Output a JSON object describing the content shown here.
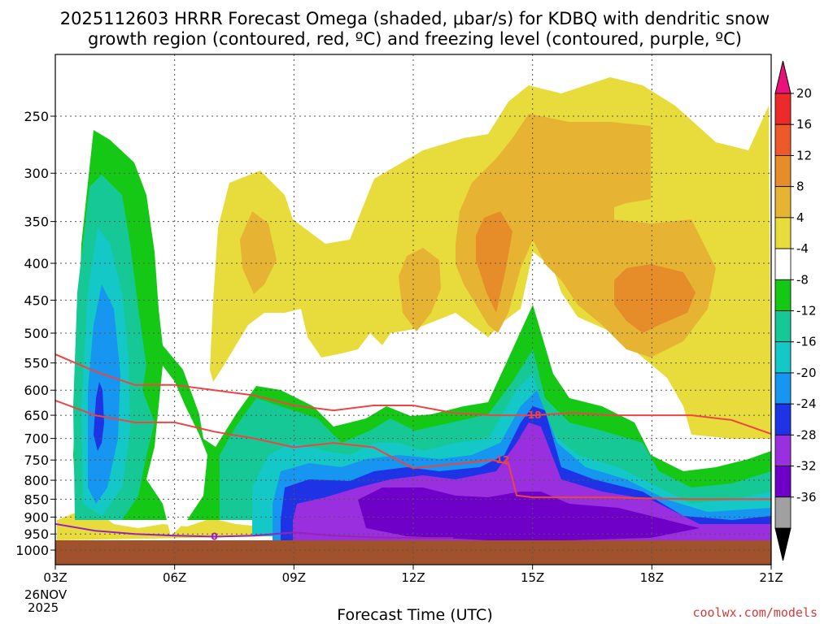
{
  "title": {
    "line1": "2025112603 HRRR Forecast Omega (shaded, μbar/s) for KDBQ with dendritic snow",
    "line2": "growth region (contoured, red, ºC) and freezing level (contoured, purple, ºC)"
  },
  "x_axis": {
    "label": "Forecast Time (UTC)",
    "date_line1": "26NOV",
    "date_line2": "2025"
  },
  "credit": "coolwx.com/models",
  "chart_data": {
    "type": "contour",
    "x": [
      "03Z",
      "06Z",
      "09Z",
      "12Z",
      "15Z",
      "18Z",
      "21Z"
    ],
    "y_ticks": [
      250,
      300,
      350,
      400,
      450,
      500,
      550,
      600,
      650,
      700,
      750,
      800,
      850,
      900,
      950,
      1000
    ],
    "y_unit": "hPa",
    "y_scale": "log",
    "y_inverted": true,
    "grid": true,
    "colorbar": {
      "levels": [
        -36,
        -32,
        -28,
        -24,
        -20,
        -16,
        -12,
        -8,
        -4,
        4,
        8,
        12,
        16,
        20
      ],
      "colors": [
        "#000000",
        "#a0a0a0",
        "#6f00c8",
        "#9a2fe0",
        "#1e32e6",
        "#1696f0",
        "#14c8c8",
        "#16c896",
        "#16c816",
        "#ffffff",
        "#e8dc3c",
        "#e6b432",
        "#e68c28",
        "#ec5a2a",
        "#ec2a2a",
        "#e8127a"
      ],
      "label_levels": [
        "20",
        "16",
        "12",
        "8",
        "4",
        "-4",
        "-8",
        "-12",
        "-16",
        "-20",
        "-24",
        "-28",
        "-32",
        "-36"
      ]
    },
    "contours": [
      {
        "name": "-18",
        "color": "#ee4444",
        "points": [
          [
            3,
            535
          ],
          [
            4,
            565
          ],
          [
            5,
            590
          ],
          [
            6,
            590
          ],
          [
            7,
            600
          ],
          [
            8,
            610
          ],
          [
            9,
            630
          ],
          [
            10,
            640
          ],
          [
            11,
            630
          ],
          [
            12,
            630
          ],
          [
            13,
            645
          ],
          [
            14,
            650
          ],
          [
            15,
            650
          ],
          [
            16,
            645
          ],
          [
            17,
            650
          ],
          [
            18,
            650
          ],
          [
            19,
            650
          ],
          [
            20,
            660
          ],
          [
            21,
            690
          ]
        ]
      },
      {
        "name": "-12",
        "color": "#ee4444",
        "points": [
          [
            3,
            620
          ],
          [
            4,
            650
          ],
          [
            5,
            665
          ],
          [
            6,
            665
          ],
          [
            7,
            685
          ],
          [
            8,
            700
          ],
          [
            9,
            720
          ],
          [
            10,
            710
          ],
          [
            11,
            720
          ],
          [
            12,
            770
          ],
          [
            13,
            760
          ],
          [
            14,
            750
          ],
          [
            14.4,
            760
          ],
          [
            14.6,
            840
          ],
          [
            15,
            845
          ],
          [
            16,
            845
          ],
          [
            17,
            845
          ],
          [
            18,
            848
          ],
          [
            19,
            850
          ],
          [
            20,
            850
          ],
          [
            21,
            850
          ]
        ]
      },
      {
        "name": "0",
        "color": "#9a22b8",
        "points": [
          [
            3,
            920
          ],
          [
            4,
            940
          ],
          [
            5,
            950
          ],
          [
            6,
            955
          ],
          [
            7,
            958
          ],
          [
            8,
            955
          ],
          [
            9,
            945
          ],
          [
            10,
            955
          ],
          [
            11,
            960
          ],
          [
            12,
            962
          ],
          [
            13,
            962
          ]
        ]
      }
    ]
  }
}
